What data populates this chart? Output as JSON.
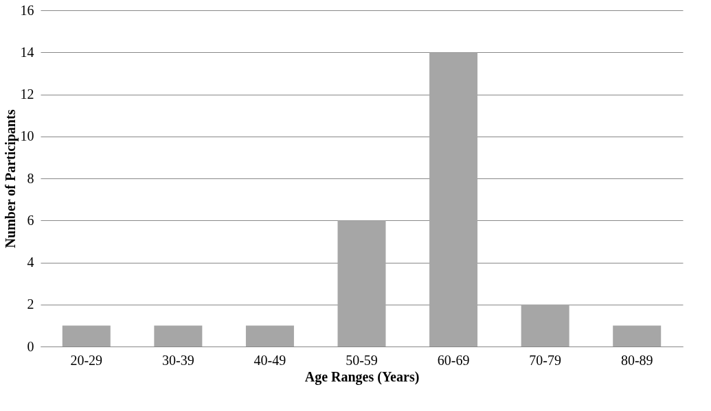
{
  "chart_data": {
    "type": "bar",
    "xlabel": "Age Ranges (Years)",
    "ylabel": "Number of Participants",
    "categories": [
      "20-29",
      "30-39",
      "40-49",
      "50-59",
      "60-69",
      "70-79",
      "80-89"
    ],
    "values": [
      1,
      1,
      1,
      6,
      14,
      2,
      1
    ],
    "color": "#a6a6a6",
    "ylim": [
      0,
      16
    ],
    "yticks": [
      0,
      2,
      4,
      6,
      8,
      10,
      12,
      14,
      16
    ],
    "grid": "y"
  }
}
